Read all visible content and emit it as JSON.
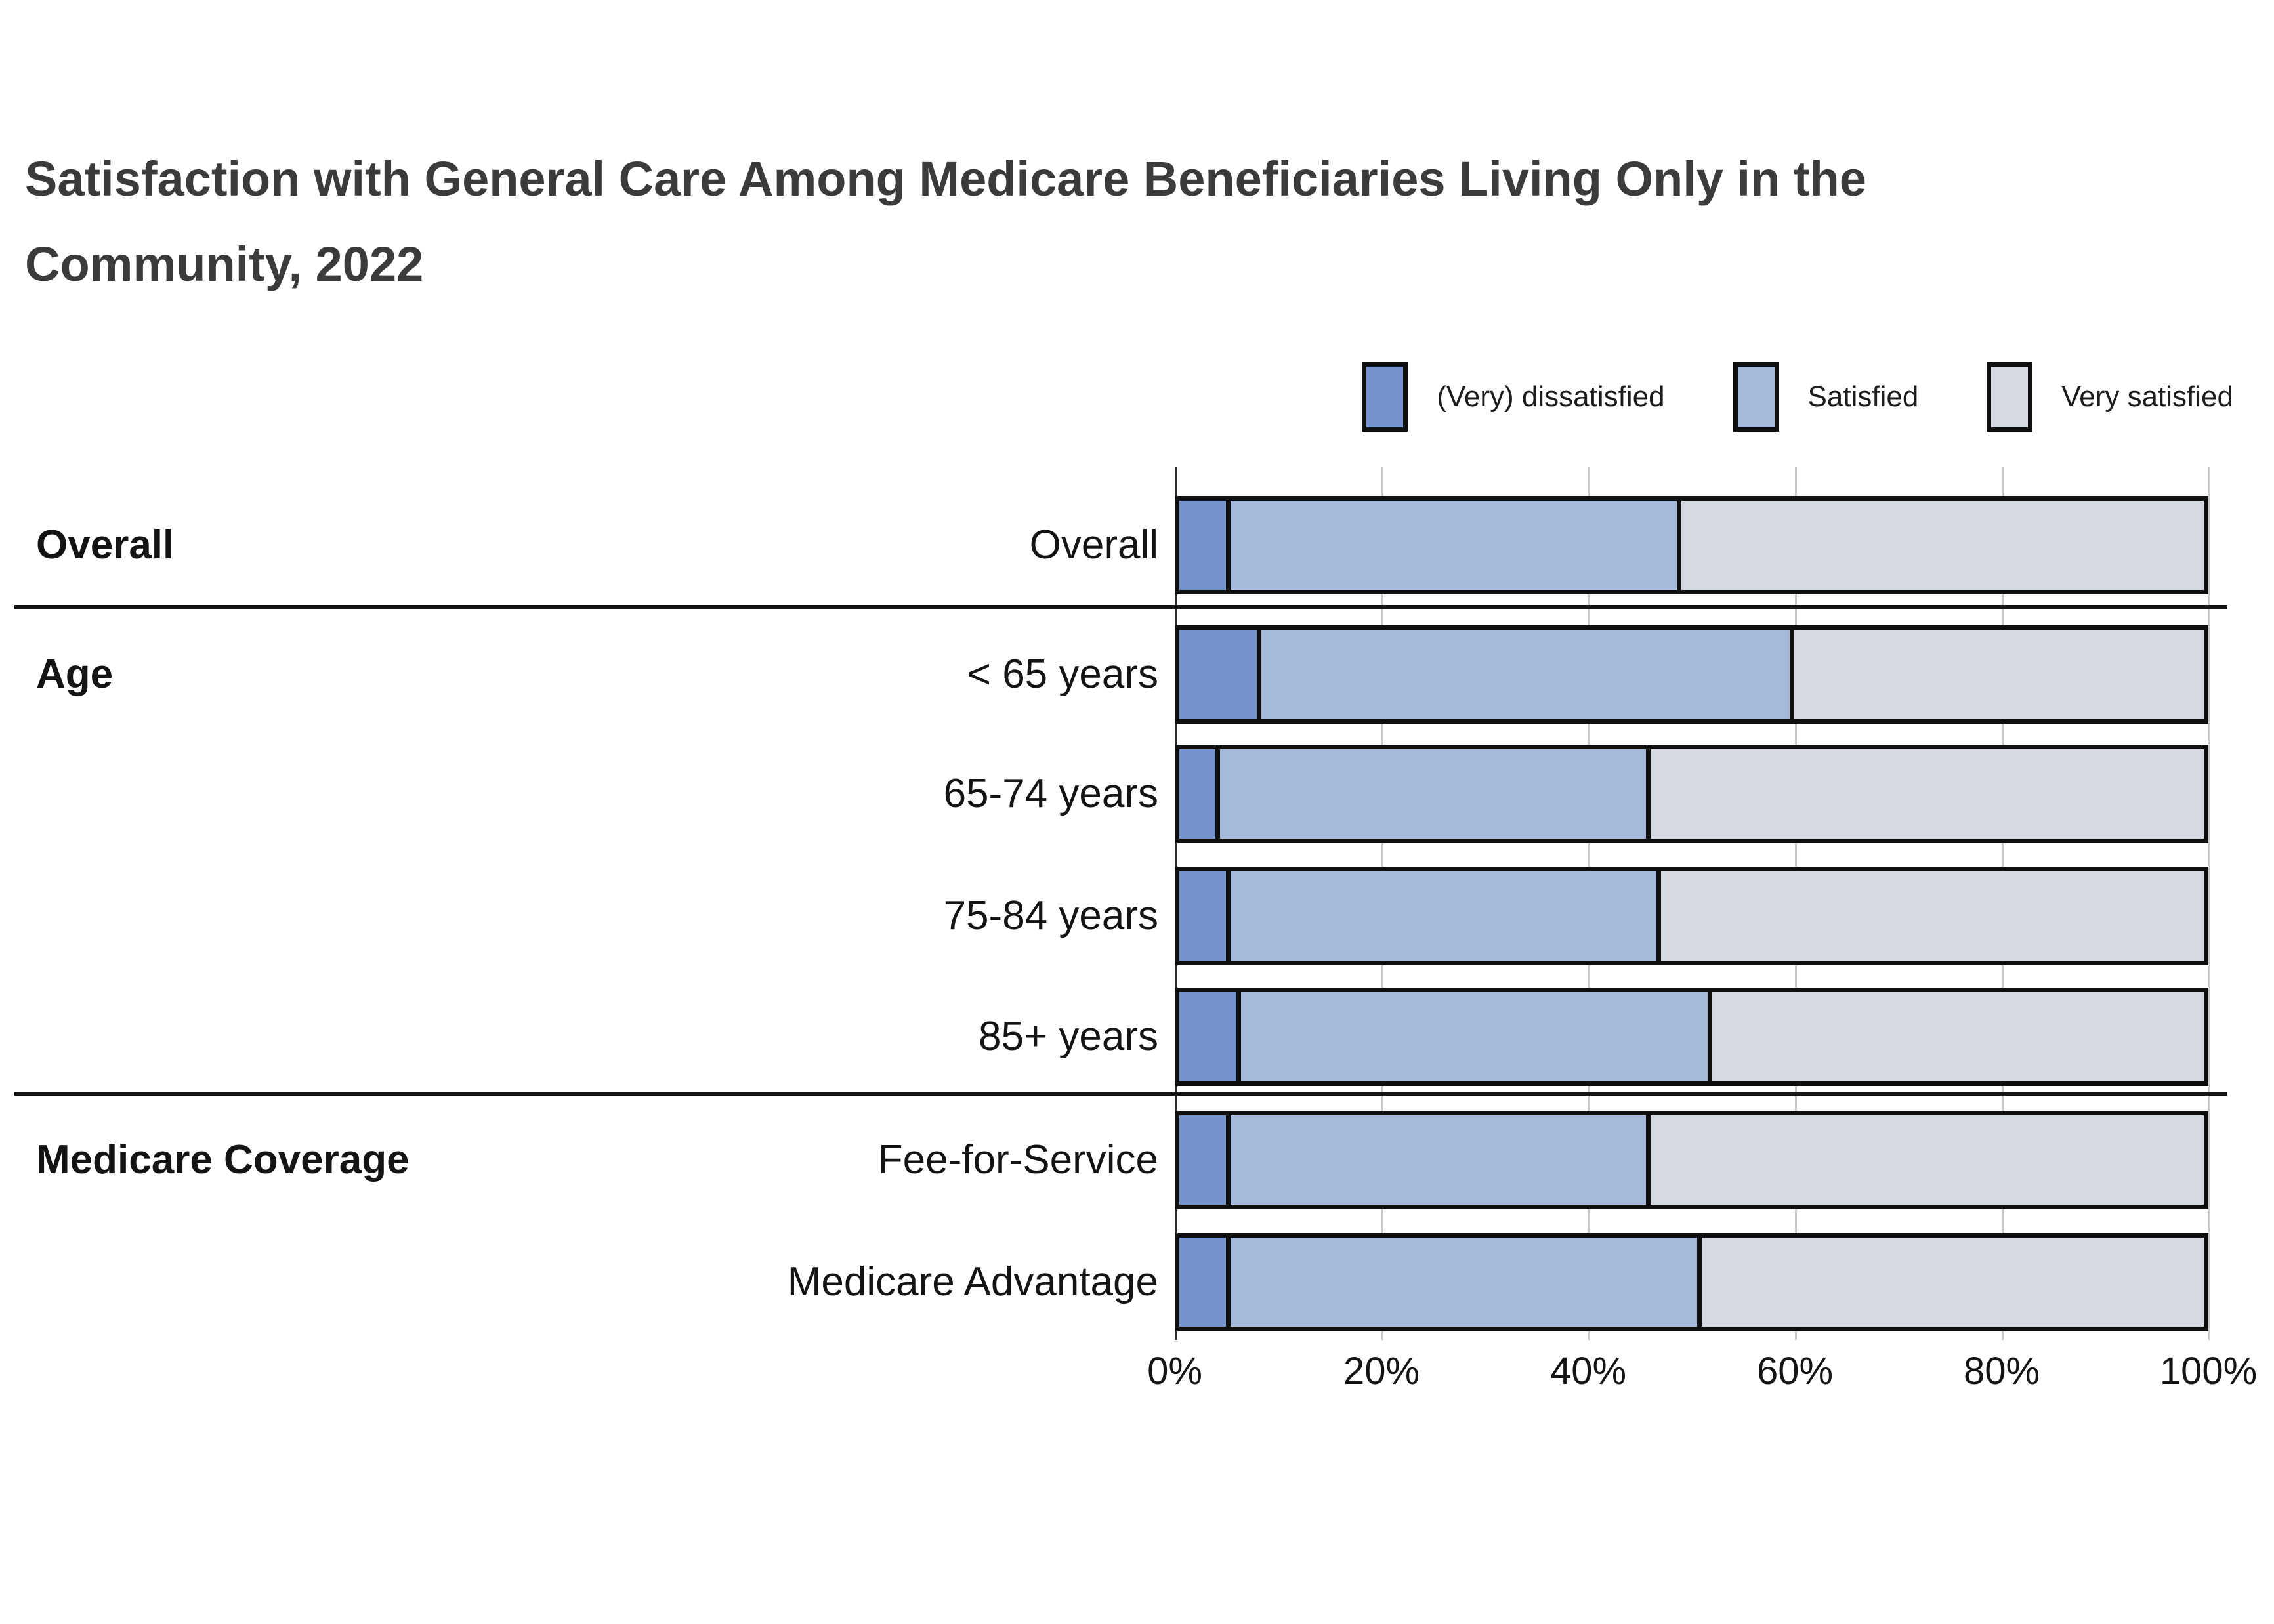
{
  "title": "Satisfaction with General Care Among Medicare Beneficiaries Living Only in the Community, 2022",
  "chart_data": {
    "type": "bar",
    "stacked": true,
    "orientation": "horizontal",
    "title": "Satisfaction with General Care Among Medicare Beneficiaries Living Only in the Community, 2022",
    "series_names": [
      "(Very) dissatisfied",
      "Satisfied",
      "Very satisfied"
    ],
    "series_colors": [
      "#7493cd",
      "#a6b9db",
      "#d4d9e2"
    ],
    "legend_position": "top-right",
    "grid": true,
    "xlim": [
      0,
      100
    ],
    "x_ticks": [
      "0%",
      "20%",
      "40%",
      "60%",
      "80%",
      "100%"
    ],
    "x_tick_values": [
      0,
      20,
      40,
      60,
      80,
      100
    ],
    "unit": "%",
    "sections": [
      {
        "label": "Overall",
        "rows": [
          {
            "label": "Overall",
            "values": [
              5,
              44,
              51
            ]
          }
        ]
      },
      {
        "label": "Age",
        "rows": [
          {
            "label": "< 65 years",
            "values": [
              8,
              52,
              40
            ]
          },
          {
            "label": "65-74 years",
            "values": [
              4,
              42,
              54
            ]
          },
          {
            "label": "75-84 years",
            "values": [
              5,
              42,
              53
            ]
          },
          {
            "label": "85+ years",
            "values": [
              6,
              46,
              48
            ]
          }
        ]
      },
      {
        "label": "Medicare Coverage",
        "rows": [
          {
            "label": "Fee-for-Service",
            "values": [
              5,
              41,
              54
            ]
          },
          {
            "label": "Medicare Advantage",
            "values": [
              5,
              46,
              49
            ]
          }
        ]
      }
    ]
  },
  "colors": {
    "background": "#ffffff",
    "title_text": "#3b3b3b",
    "label_text": "#141414",
    "bar_border": "#0f0f0f",
    "gridline": "#c9c9c9",
    "axis_line": "#2b2b2b",
    "divider": "#161616"
  }
}
